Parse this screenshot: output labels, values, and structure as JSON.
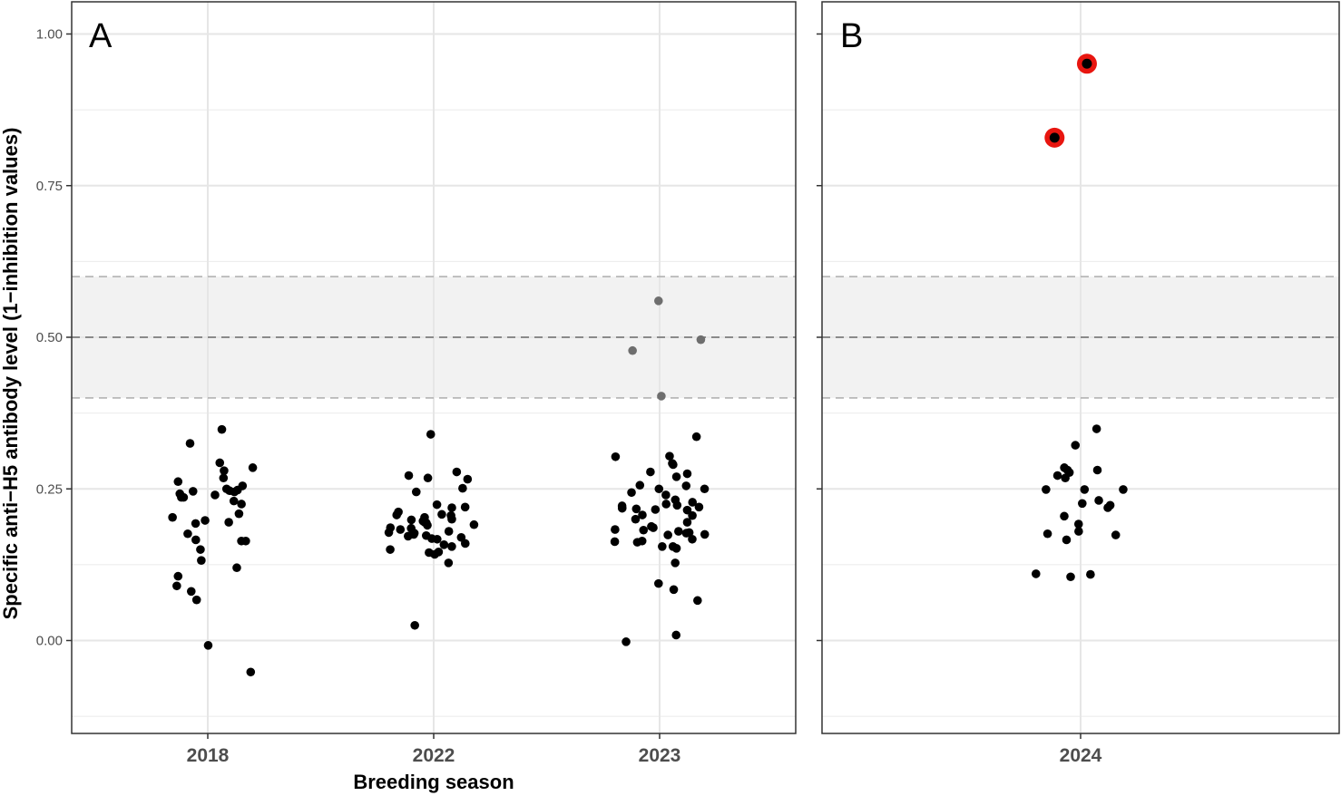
{
  "chart_data": {
    "type": "scatter",
    "ylabel": "Specific anti−H5 antibody level (1−inhibition values)",
    "ylim": [
      -0.15,
      1.05
    ],
    "yticks": [
      {
        "value": 0,
        "label": "0.00"
      },
      {
        "value": 0.25,
        "label": "0.25"
      },
      {
        "value": 0.5,
        "label": "0.50"
      },
      {
        "value": 0.75,
        "label": "0.75"
      },
      {
        "value": 1,
        "label": "1.00"
      }
    ],
    "reference_band": {
      "low": 0.4,
      "high": 0.6,
      "threshold": 0.5,
      "color": "#f2f2f2"
    },
    "grid": true,
    "colors": {
      "point": "#000000",
      "in_band_point": "#6e6e6e",
      "highlight_ring": "#e8150f",
      "threshold_line": "#6b6b6b",
      "band_edge_line": "#b3b3b3"
    },
    "panels": [
      {
        "label": "A",
        "xlabel": "Breeding season",
        "categories": [
          "2018",
          "2022",
          "2023"
        ],
        "points": [
          {
            "x": "2018",
            "y": 0.348
          },
          {
            "x": "2018",
            "y": 0.325
          },
          {
            "x": "2018",
            "y": 0.293
          },
          {
            "x": "2018",
            "y": 0.285
          },
          {
            "x": "2018",
            "y": 0.28
          },
          {
            "x": "2018",
            "y": 0.268
          },
          {
            "x": "2018",
            "y": 0.262
          },
          {
            "x": "2018",
            "y": 0.255
          },
          {
            "x": "2018",
            "y": 0.25
          },
          {
            "x": "2018",
            "y": 0.248
          },
          {
            "x": "2018",
            "y": 0.247
          },
          {
            "x": "2018",
            "y": 0.246
          },
          {
            "x": "2018",
            "y": 0.245
          },
          {
            "x": "2018",
            "y": 0.242
          },
          {
            "x": "2018",
            "y": 0.24
          },
          {
            "x": "2018",
            "y": 0.236
          },
          {
            "x": "2018",
            "y": 0.236
          },
          {
            "x": "2018",
            "y": 0.23
          },
          {
            "x": "2018",
            "y": 0.225
          },
          {
            "x": "2018",
            "y": 0.209
          },
          {
            "x": "2018",
            "y": 0.203
          },
          {
            "x": "2018",
            "y": 0.198
          },
          {
            "x": "2018",
            "y": 0.195
          },
          {
            "x": "2018",
            "y": 0.193
          },
          {
            "x": "2018",
            "y": 0.176
          },
          {
            "x": "2018",
            "y": 0.166
          },
          {
            "x": "2018",
            "y": 0.164
          },
          {
            "x": "2018",
            "y": 0.164
          },
          {
            "x": "2018",
            "y": 0.15
          },
          {
            "x": "2018",
            "y": 0.132
          },
          {
            "x": "2018",
            "y": 0.12
          },
          {
            "x": "2018",
            "y": 0.106
          },
          {
            "x": "2018",
            "y": 0.09
          },
          {
            "x": "2018",
            "y": 0.081
          },
          {
            "x": "2018",
            "y": 0.067
          },
          {
            "x": "2018",
            "y": -0.008
          },
          {
            "x": "2018",
            "y": -0.052
          },
          {
            "x": "2022",
            "y": 0.34
          },
          {
            "x": "2022",
            "y": 0.278
          },
          {
            "x": "2022",
            "y": 0.272
          },
          {
            "x": "2022",
            "y": 0.268
          },
          {
            "x": "2022",
            "y": 0.266
          },
          {
            "x": "2022",
            "y": 0.251
          },
          {
            "x": "2022",
            "y": 0.245
          },
          {
            "x": "2022",
            "y": 0.224
          },
          {
            "x": "2022",
            "y": 0.22
          },
          {
            "x": "2022",
            "y": 0.219
          },
          {
            "x": "2022",
            "y": 0.212
          },
          {
            "x": "2022",
            "y": 0.208
          },
          {
            "x": "2022",
            "y": 0.207
          },
          {
            "x": "2022",
            "y": 0.206
          },
          {
            "x": "2022",
            "y": 0.203
          },
          {
            "x": "2022",
            "y": 0.2
          },
          {
            "x": "2022",
            "y": 0.199
          },
          {
            "x": "2022",
            "y": 0.197
          },
          {
            "x": "2022",
            "y": 0.195
          },
          {
            "x": "2022",
            "y": 0.194
          },
          {
            "x": "2022",
            "y": 0.191
          },
          {
            "x": "2022",
            "y": 0.19
          },
          {
            "x": "2022",
            "y": 0.186
          },
          {
            "x": "2022",
            "y": 0.185
          },
          {
            "x": "2022",
            "y": 0.183
          },
          {
            "x": "2022",
            "y": 0.18
          },
          {
            "x": "2022",
            "y": 0.178
          },
          {
            "x": "2022",
            "y": 0.177
          },
          {
            "x": "2022",
            "y": 0.175
          },
          {
            "x": "2022",
            "y": 0.173
          },
          {
            "x": "2022",
            "y": 0.172
          },
          {
            "x": "2022",
            "y": 0.17
          },
          {
            "x": "2022",
            "y": 0.168
          },
          {
            "x": "2022",
            "y": 0.167
          },
          {
            "x": "2022",
            "y": 0.16
          },
          {
            "x": "2022",
            "y": 0.158
          },
          {
            "x": "2022",
            "y": 0.155
          },
          {
            "x": "2022",
            "y": 0.15
          },
          {
            "x": "2022",
            "y": 0.146
          },
          {
            "x": "2022",
            "y": 0.145
          },
          {
            "x": "2022",
            "y": 0.142
          },
          {
            "x": "2022",
            "y": 0.128
          },
          {
            "x": "2022",
            "y": 0.025
          },
          {
            "x": "2023",
            "y": 0.56
          },
          {
            "x": "2023",
            "y": 0.496
          },
          {
            "x": "2023",
            "y": 0.478
          },
          {
            "x": "2023",
            "y": 0.403
          },
          {
            "x": "2023",
            "y": 0.336
          },
          {
            "x": "2023",
            "y": 0.304
          },
          {
            "x": "2023",
            "y": 0.303
          },
          {
            "x": "2023",
            "y": 0.292
          },
          {
            "x": "2023",
            "y": 0.29
          },
          {
            "x": "2023",
            "y": 0.278
          },
          {
            "x": "2023",
            "y": 0.275
          },
          {
            "x": "2023",
            "y": 0.27
          },
          {
            "x": "2023",
            "y": 0.256
          },
          {
            "x": "2023",
            "y": 0.255
          },
          {
            "x": "2023",
            "y": 0.25
          },
          {
            "x": "2023",
            "y": 0.25
          },
          {
            "x": "2023",
            "y": 0.244
          },
          {
            "x": "2023",
            "y": 0.24
          },
          {
            "x": "2023",
            "y": 0.232
          },
          {
            "x": "2023",
            "y": 0.228
          },
          {
            "x": "2023",
            "y": 0.225
          },
          {
            "x": "2023",
            "y": 0.223
          },
          {
            "x": "2023",
            "y": 0.222
          },
          {
            "x": "2023",
            "y": 0.22
          },
          {
            "x": "2023",
            "y": 0.218
          },
          {
            "x": "2023",
            "y": 0.217
          },
          {
            "x": "2023",
            "y": 0.216
          },
          {
            "x": "2023",
            "y": 0.215
          },
          {
            "x": "2023",
            "y": 0.207
          },
          {
            "x": "2023",
            "y": 0.206
          },
          {
            "x": "2023",
            "y": 0.2
          },
          {
            "x": "2023",
            "y": 0.195
          },
          {
            "x": "2023",
            "y": 0.188
          },
          {
            "x": "2023",
            "y": 0.186
          },
          {
            "x": "2023",
            "y": 0.183
          },
          {
            "x": "2023",
            "y": 0.182
          },
          {
            "x": "2023",
            "y": 0.18
          },
          {
            "x": "2023",
            "y": 0.178
          },
          {
            "x": "2023",
            "y": 0.177
          },
          {
            "x": "2023",
            "y": 0.175
          },
          {
            "x": "2023",
            "y": 0.174
          },
          {
            "x": "2023",
            "y": 0.167
          },
          {
            "x": "2023",
            "y": 0.164
          },
          {
            "x": "2023",
            "y": 0.163
          },
          {
            "x": "2023",
            "y": 0.162
          },
          {
            "x": "2023",
            "y": 0.155
          },
          {
            "x": "2023",
            "y": 0.155
          },
          {
            "x": "2023",
            "y": 0.152
          },
          {
            "x": "2023",
            "y": 0.128
          },
          {
            "x": "2023",
            "y": 0.094
          },
          {
            "x": "2023",
            "y": 0.084
          },
          {
            "x": "2023",
            "y": 0.066
          },
          {
            "x": "2023",
            "y": 0.009
          },
          {
            "x": "2023",
            "y": -0.002
          }
        ]
      },
      {
        "label": "B",
        "xlabel": "",
        "categories": [
          "2024"
        ],
        "points": [
          {
            "x": "2024",
            "y": 0.951,
            "highlight": true
          },
          {
            "x": "2024",
            "y": 0.829,
            "highlight": true
          },
          {
            "x": "2024",
            "y": 0.349
          },
          {
            "x": "2024",
            "y": 0.322
          },
          {
            "x": "2024",
            "y": 0.285
          },
          {
            "x": "2024",
            "y": 0.281
          },
          {
            "x": "2024",
            "y": 0.281
          },
          {
            "x": "2024",
            "y": 0.277
          },
          {
            "x": "2024",
            "y": 0.272
          },
          {
            "x": "2024",
            "y": 0.268
          },
          {
            "x": "2024",
            "y": 0.249
          },
          {
            "x": "2024",
            "y": 0.249
          },
          {
            "x": "2024",
            "y": 0.249
          },
          {
            "x": "2024",
            "y": 0.231
          },
          {
            "x": "2024",
            "y": 0.226
          },
          {
            "x": "2024",
            "y": 0.223
          },
          {
            "x": "2024",
            "y": 0.219
          },
          {
            "x": "2024",
            "y": 0.205
          },
          {
            "x": "2024",
            "y": 0.192
          },
          {
            "x": "2024",
            "y": 0.18
          },
          {
            "x": "2024",
            "y": 0.176
          },
          {
            "x": "2024",
            "y": 0.174
          },
          {
            "x": "2024",
            "y": 0.166
          },
          {
            "x": "2024",
            "y": 0.11
          },
          {
            "x": "2024",
            "y": 0.109
          },
          {
            "x": "2024",
            "y": 0.105
          }
        ]
      }
    ]
  }
}
